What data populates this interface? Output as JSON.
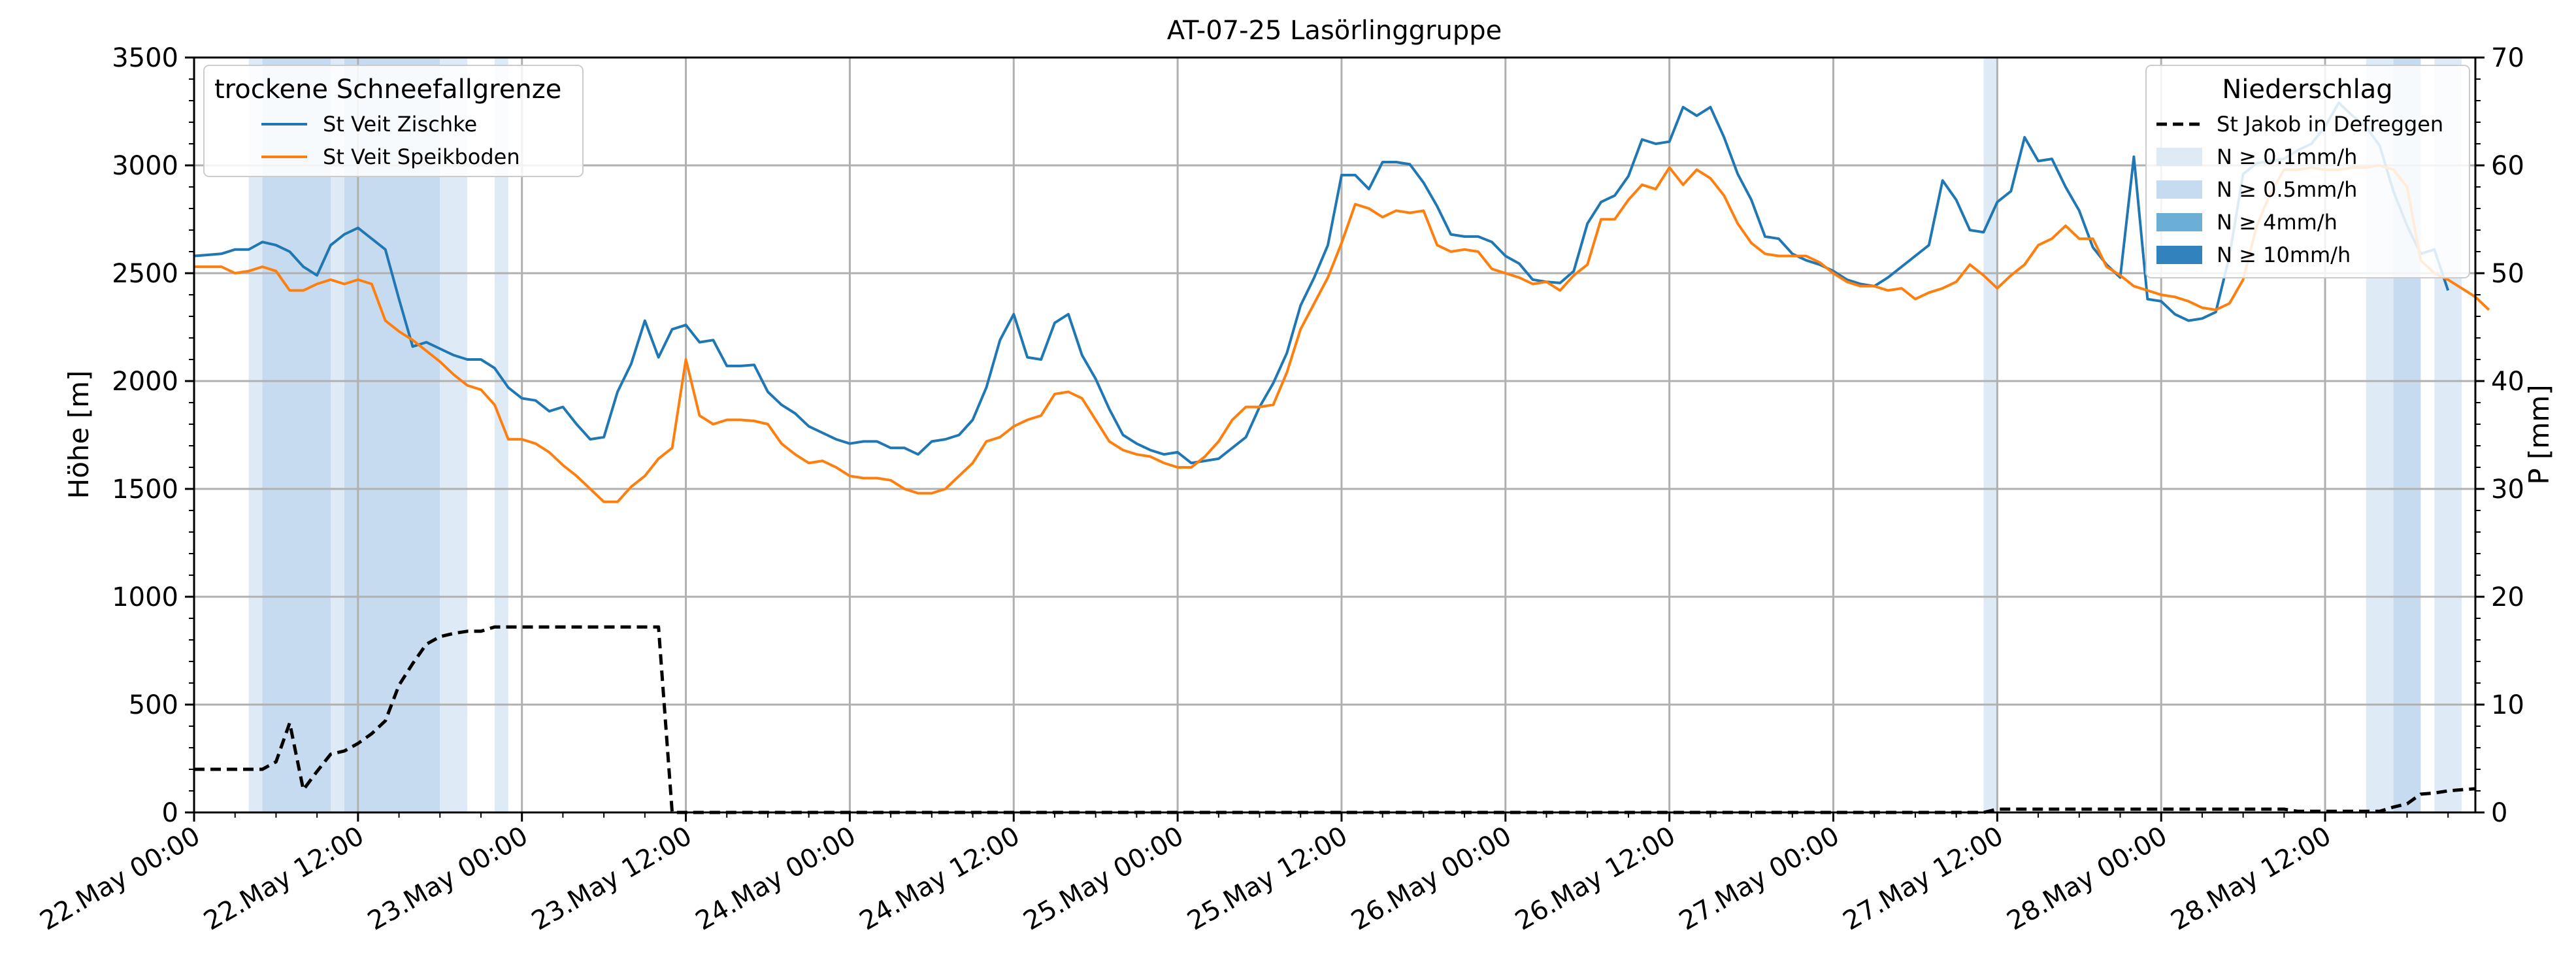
{
  "chart_data": {
    "type": "line",
    "title": "AT-07-25 Lasörlinggruppe",
    "ylabel_left": "Höhe [m]",
    "ylabel_right": "P [mm]",
    "xlabel": "",
    "x_start": "2025-05-22 00:00",
    "x_step_hours": 1,
    "x_end": "2025-05-28 23:00",
    "x_ticks": [
      "22.May 00:00",
      "22.May 12:00",
      "23.May 00:00",
      "23.May 12:00",
      "24.May 00:00",
      "24.May 12:00",
      "25.May 00:00",
      "25.May 12:00",
      "26.May 00:00",
      "26.May 12:00",
      "27.May 00:00",
      "27.May 12:00",
      "28.May 00:00",
      "28.May 12:00"
    ],
    "ylim_left": [
      0,
      3500
    ],
    "yticks_left": [
      "0",
      "500",
      "1000",
      "1500",
      "2000",
      "2500",
      "3000",
      "3500"
    ],
    "ylim_right": [
      0,
      70
    ],
    "yticks_right": [
      "0",
      "10",
      "20",
      "30",
      "40",
      "50",
      "60",
      "70"
    ],
    "grid": true,
    "legend_left": {
      "title": "trockene Schneefallgrenze",
      "placement": "top-left",
      "entries": [
        "St Veit Zischke",
        "St Veit Speikboden"
      ]
    },
    "legend_right": {
      "title": "Niederschlag",
      "placement": "top-right",
      "entries": [
        "St Jakob in Defreggen",
        "N ≥ 0.1mm/h",
        "N ≥ 0.5mm/h",
        "N ≥ 4mm/h",
        "N ≥ 10mm/h"
      ]
    },
    "colors": {
      "series1": "#1f77b4",
      "series2": "#ff7f0e",
      "precip": "#000000",
      "band_0_1": "#deebf7",
      "band_0_5": "#c6dbef",
      "band_4": "#6baed6",
      "band_10": "#3182bd",
      "grid": "#b0b0b0"
    },
    "series": [
      {
        "name": "St Veit Zischke",
        "axis": "left",
        "values": [
          2580,
          2585,
          2590,
          2610,
          2610,
          2645,
          2630,
          2600,
          2530,
          2490,
          2630,
          2680,
          2710,
          2660,
          2610,
          2380,
          2160,
          2180,
          2150,
          2120,
          2100,
          2100,
          2060,
          1970,
          1920,
          1910,
          1860,
          1880,
          1800,
          1730,
          1740,
          1950,
          2080,
          2280,
          2110,
          2240,
          2260,
          2180,
          2190,
          2070,
          2070,
          2075,
          1950,
          1890,
          1850,
          1790,
          1760,
          1730,
          1710,
          1720,
          1720,
          1690,
          1690,
          1660,
          1720,
          1730,
          1750,
          1820,
          1970,
          2190,
          2310,
          2110,
          2100,
          2270,
          2310,
          2120,
          2010,
          1870,
          1750,
          1710,
          1680,
          1660,
          1670,
          1620,
          1630,
          1640,
          1690,
          1740,
          1880,
          1990,
          2130,
          2350,
          2480,
          2630,
          2955,
          2955,
          2890,
          3015,
          3015,
          3005,
          2920,
          2810,
          2680,
          2670,
          2670,
          2645,
          2580,
          2545,
          2470,
          2460,
          2455,
          2510,
          2730,
          2830,
          2860,
          2950,
          3120,
          3100,
          3110,
          3270,
          3230,
          3270,
          3130,
          2960,
          2840,
          2670,
          2660,
          2590,
          2560,
          2540,
          2510,
          2470,
          2450,
          2440,
          2480,
          2530,
          2580,
          2630,
          2930,
          2840,
          2700,
          2690,
          2830,
          2880,
          3130,
          3020,
          3030,
          2900,
          2790,
          2620,
          2540,
          2480,
          3040,
          2380,
          2370,
          2310,
          2280,
          2290,
          2320,
          2580,
          2960,
          3010,
          3020,
          3030,
          3070,
          3100,
          3180,
          3290,
          3230,
          3180,
          3090,
          2880,
          2720,
          2590,
          2610,
          2420
        ]
      },
      {
        "name": "St Veit Speikboden",
        "axis": "left",
        "values": [
          2530,
          2530,
          2530,
          2500,
          2510,
          2530,
          2510,
          2420,
          2420,
          2450,
          2470,
          2450,
          2470,
          2450,
          2280,
          2230,
          2190,
          2140,
          2090,
          2030,
          1980,
          1960,
          1890,
          1730,
          1730,
          1710,
          1670,
          1610,
          1560,
          1500,
          1440,
          1440,
          1510,
          1560,
          1640,
          1690,
          2100,
          1840,
          1800,
          1820,
          1820,
          1815,
          1800,
          1710,
          1660,
          1620,
          1630,
          1600,
          1560,
          1550,
          1550,
          1540,
          1500,
          1480,
          1480,
          1500,
          1560,
          1620,
          1720,
          1740,
          1790,
          1820,
          1840,
          1940,
          1950,
          1920,
          1820,
          1720,
          1680,
          1660,
          1650,
          1620,
          1600,
          1600,
          1650,
          1720,
          1820,
          1880,
          1880,
          1890,
          2040,
          2240,
          2360,
          2480,
          2640,
          2820,
          2800,
          2760,
          2790,
          2780,
          2790,
          2630,
          2600,
          2610,
          2600,
          2520,
          2500,
          2480,
          2450,
          2460,
          2420,
          2490,
          2540,
          2750,
          2750,
          2840,
          2910,
          2890,
          2990,
          2910,
          2980,
          2940,
          2860,
          2730,
          2640,
          2590,
          2580,
          2580,
          2580,
          2550,
          2500,
          2460,
          2440,
          2440,
          2420,
          2430,
          2380,
          2410,
          2430,
          2460,
          2540,
          2490,
          2430,
          2490,
          2540,
          2630,
          2660,
          2720,
          2660,
          2660,
          2530,
          2490,
          2440,
          2420,
          2400,
          2390,
          2370,
          2340,
          2330,
          2360,
          2470,
          2720,
          2870,
          2980,
          2980,
          2990,
          2980,
          2980,
          2990,
          2990,
          3000,
          2980,
          2900,
          2560,
          2500,
          2470,
          2430,
          2390,
          2330
        ]
      },
      {
        "name": "St Jakob in Defreggen",
        "axis": "right",
        "values": [
          4,
          4,
          4,
          4,
          4,
          4,
          4.7,
          8.3,
          2.1,
          3.8,
          5.4,
          5.7,
          6.4,
          7.3,
          8.5,
          11.8,
          13.8,
          15.6,
          16.3,
          16.6,
          16.8,
          16.8,
          17.2,
          17.2,
          17.2,
          17.2,
          17.2,
          17.2,
          17.2,
          17.2,
          17.2,
          17.2,
          17.2,
          17.2,
          17.2,
          0,
          0,
          0,
          0,
          0,
          0,
          0,
          0,
          0,
          0,
          0,
          0,
          0,
          0,
          0,
          0,
          0,
          0,
          0,
          0,
          0,
          0,
          0,
          0,
          0,
          0,
          0,
          0,
          0,
          0,
          0,
          0,
          0,
          0,
          0,
          0,
          0,
          0,
          0,
          0,
          0,
          0,
          0,
          0,
          0,
          0,
          0,
          0,
          0,
          0,
          0,
          0,
          0,
          0,
          0,
          0,
          0,
          0,
          0,
          0,
          0,
          0,
          0,
          0,
          0,
          0,
          0,
          0,
          0,
          0,
          0,
          0,
          0,
          0,
          0,
          0,
          0,
          0,
          0,
          0,
          0,
          0,
          0,
          0,
          0,
          0,
          0,
          0,
          0,
          0,
          0,
          0,
          0,
          0,
          0,
          0,
          0,
          0.3,
          0.3,
          0.3,
          0.3,
          0.3,
          0.3,
          0.3,
          0.3,
          0.3,
          0.3,
          0.3,
          0.3,
          0.3,
          0.3,
          0.3,
          0.3,
          0.3,
          0.3,
          0.3,
          0.3,
          0.3,
          0.3,
          0.1,
          0.1,
          0.1,
          0.1,
          0.1,
          0.1,
          0.1,
          0.5,
          0.8,
          1.7,
          1.8,
          2,
          2.1,
          2.2
        ]
      }
    ],
    "precip_bands": [
      {
        "from": "2025-05-22 04:00",
        "to": "2025-05-22 05:00",
        "class": "band_0_1"
      },
      {
        "from": "2025-05-22 05:00",
        "to": "2025-05-22 10:00",
        "class": "band_0_5"
      },
      {
        "from": "2025-05-22 10:00",
        "to": "2025-05-22 11:00",
        "class": "band_0_1"
      },
      {
        "from": "2025-05-22 11:00",
        "to": "2025-05-22 18:00",
        "class": "band_0_5"
      },
      {
        "from": "2025-05-22 18:00",
        "to": "2025-05-22 20:00",
        "class": "band_0_1"
      },
      {
        "from": "2025-05-22 22:00",
        "to": "2025-05-22 23:00",
        "class": "band_0_1"
      },
      {
        "from": "2025-05-27 11:00",
        "to": "2025-05-27 12:00",
        "class": "band_0_1"
      },
      {
        "from": "2025-05-28 15:00",
        "to": "2025-05-28 17:00",
        "class": "band_0_1"
      },
      {
        "from": "2025-05-28 17:00",
        "to": "2025-05-28 19:00",
        "class": "band_0_5"
      },
      {
        "from": "2025-05-28 20:00",
        "to": "2025-05-28 22:00",
        "class": "band_0_1"
      }
    ]
  }
}
